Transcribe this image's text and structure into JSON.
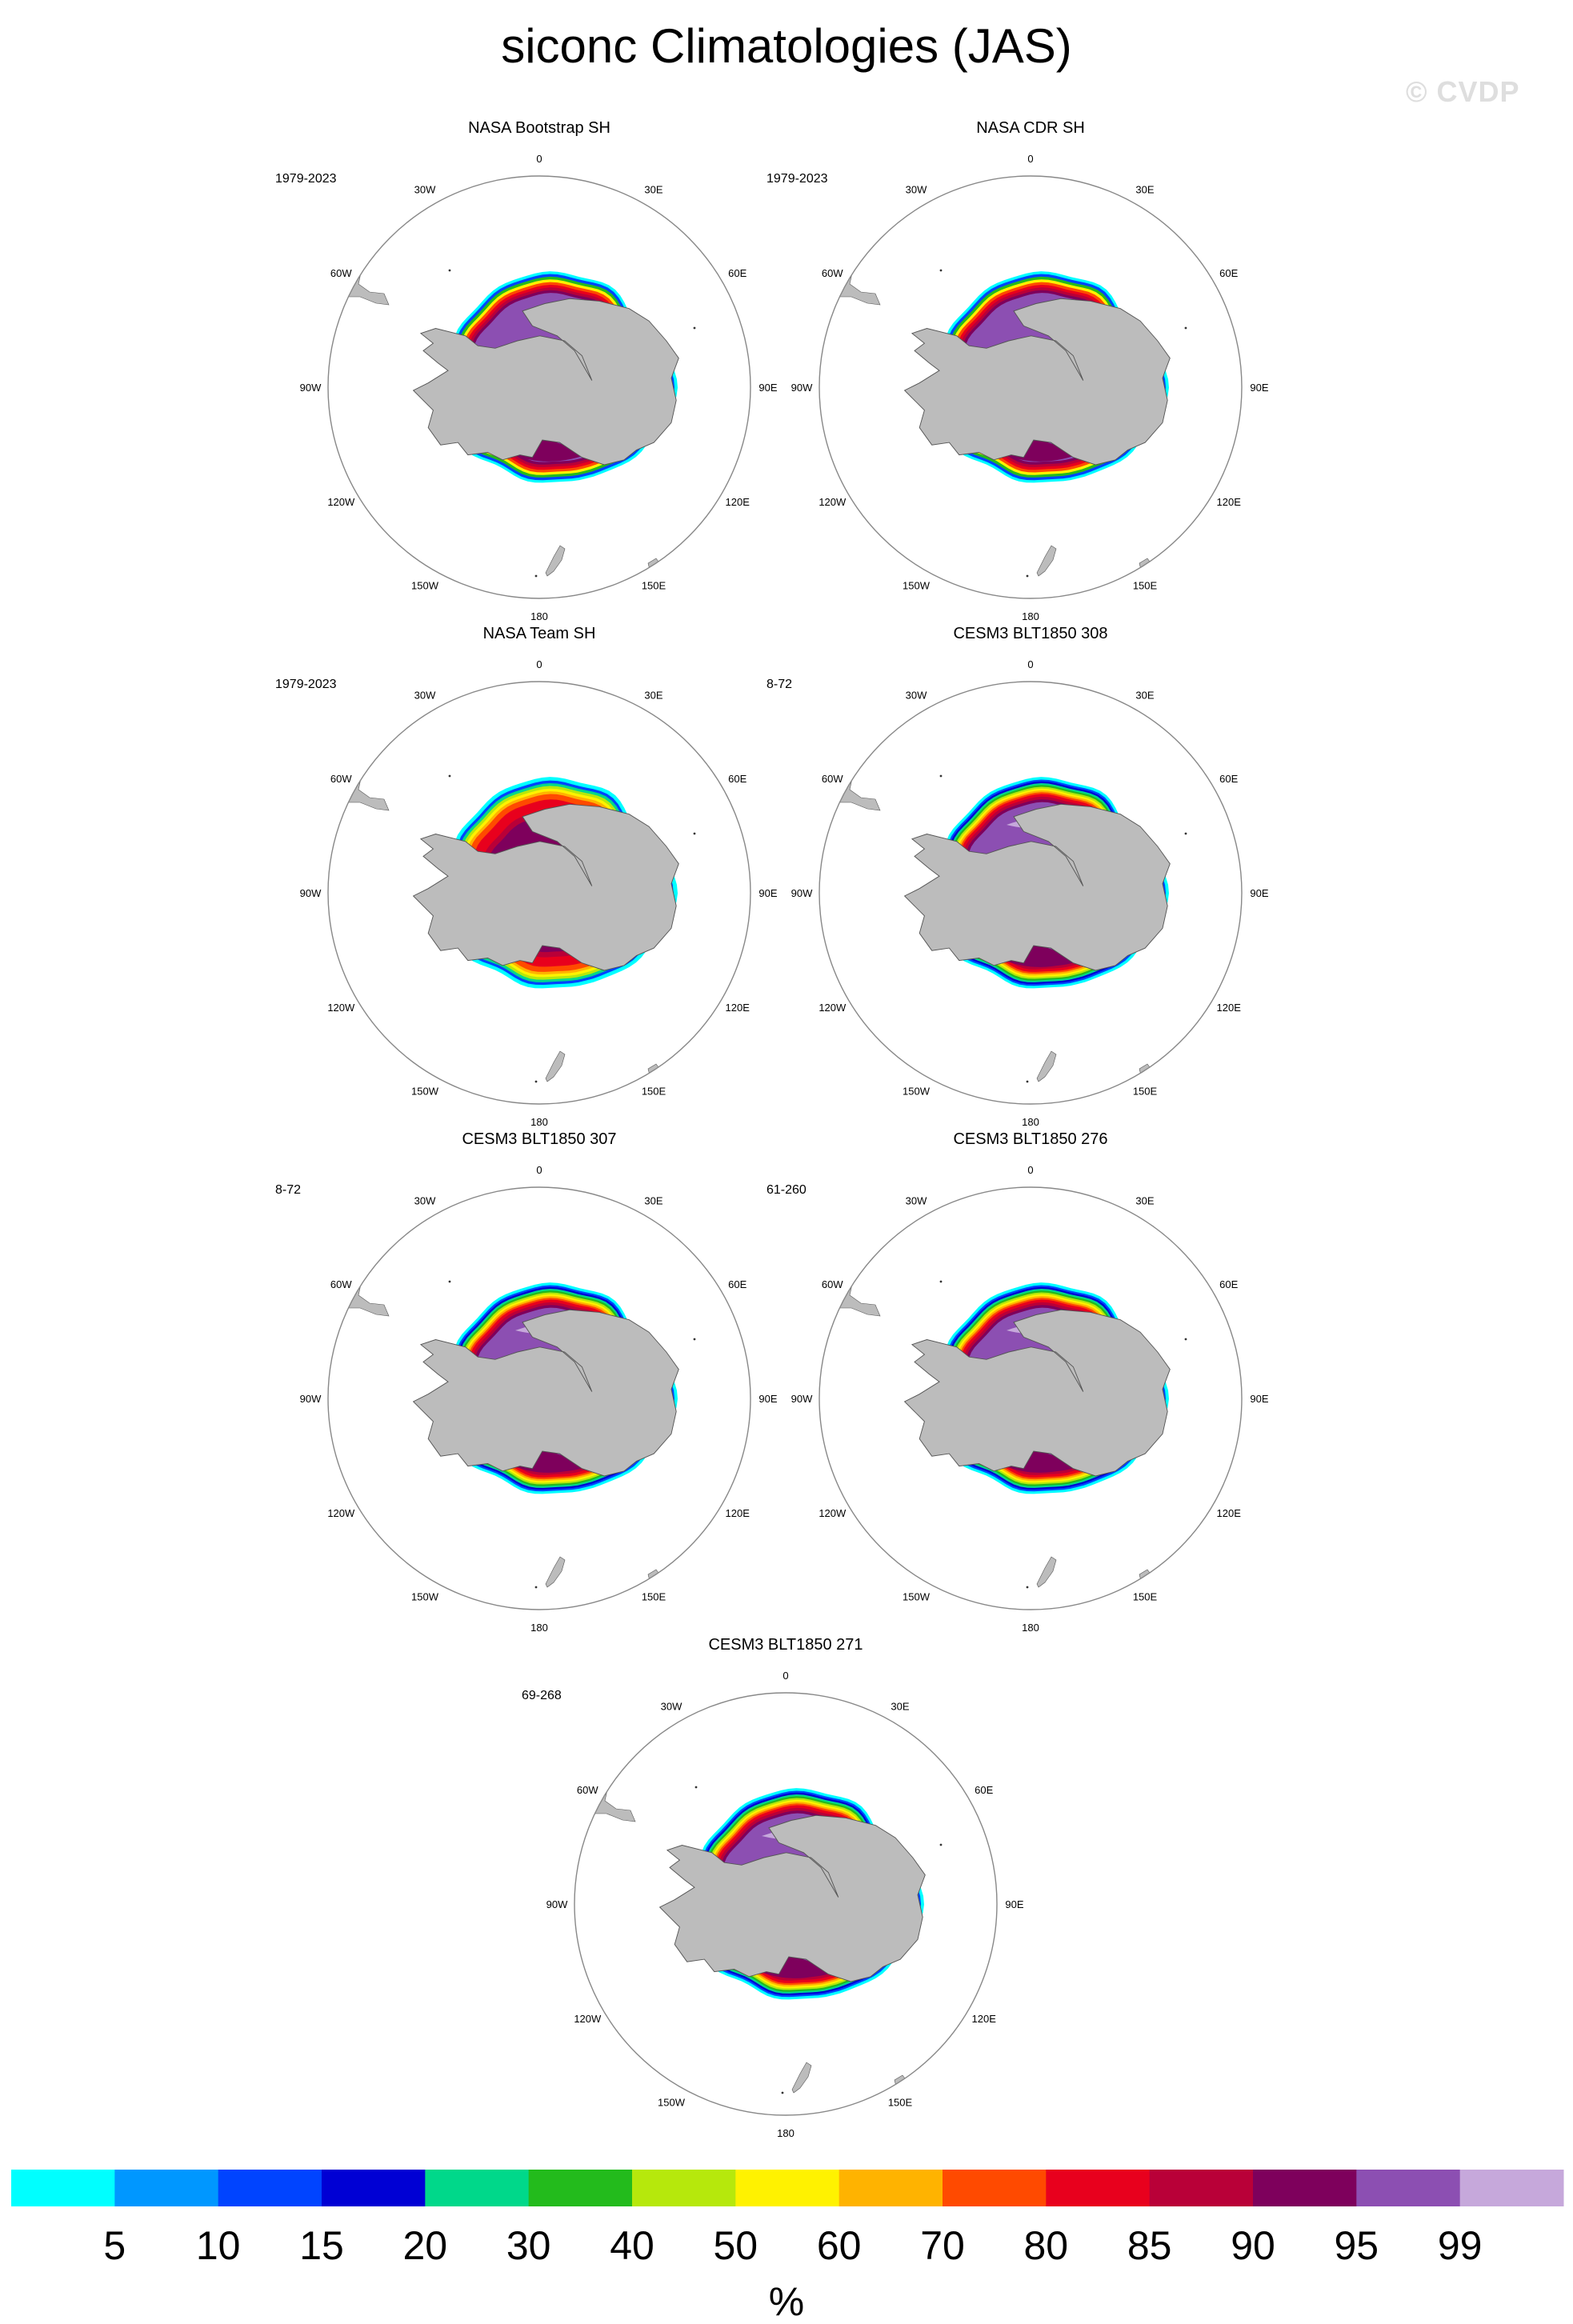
{
  "title": "siconc Climatologies (JAS)",
  "watermark": "© CVDP",
  "longitude_labels": [
    "0",
    "30E",
    "60E",
    "90E",
    "120E",
    "150E",
    "180",
    "150W",
    "120W",
    "90W",
    "60W",
    "30W"
  ],
  "panels": [
    {
      "title": "NASA Bootstrap SH",
      "years": "1979-2023",
      "style": "obs_bootstrap"
    },
    {
      "title": "NASA CDR SH",
      "years": "1979-2023",
      "style": "obs_cdr"
    },
    {
      "title": "NASA Team SH",
      "years": "1979-2023",
      "style": "obs_team"
    },
    {
      "title": "CESM3 BLT1850 308",
      "years": "8-72",
      "style": "model"
    },
    {
      "title": "CESM3 BLT1850 307",
      "years": "8-72",
      "style": "model"
    },
    {
      "title": "CESM3 BLT1850 276",
      "years": "61-260",
      "style": "model"
    },
    {
      "title": "CESM3 BLT1850 271",
      "years": "69-268",
      "style": "model"
    }
  ],
  "colorbar": {
    "labels": [
      "5",
      "10",
      "15",
      "20",
      "30",
      "40",
      "50",
      "60",
      "70",
      "80",
      "85",
      "90",
      "95",
      "99"
    ],
    "colors": [
      "#00ffff",
      "#0097ff",
      "#0044ff",
      "#0000d4",
      "#00d88a",
      "#23bb1c",
      "#b6e80c",
      "#fff200",
      "#ffb300",
      "#ff4a00",
      "#e8001d",
      "#b90038",
      "#7e005c",
      "#8c4fb2",
      "#c6a8db"
    ],
    "unit": "%"
  },
  "colors": {
    "land": "#bcbcbc",
    "coast": "#555555",
    "map_boundary": "#888888"
  }
}
